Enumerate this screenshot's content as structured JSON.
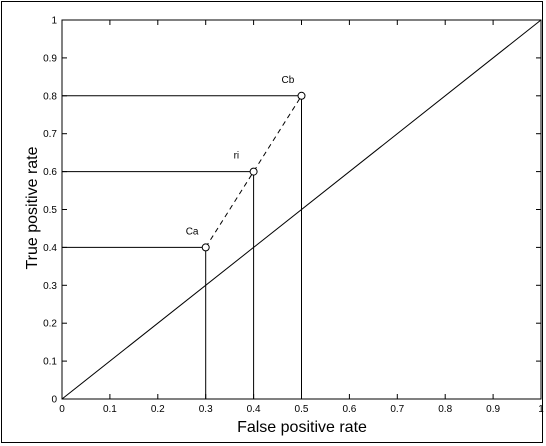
{
  "chart_data": {
    "type": "line",
    "xlabel": "False positive rate",
    "ylabel": "True positive rate",
    "xlim": [
      0,
      1
    ],
    "ylim": [
      0,
      1
    ],
    "xticks": [
      "0",
      "0.1",
      "0.2",
      "0.3",
      "0.4",
      "0.5",
      "0.6",
      "0.7",
      "0.8",
      "0.9",
      "1"
    ],
    "yticks": [
      "0",
      "0.1",
      "0.2",
      "0.3",
      "0.4",
      "0.5",
      "0.6",
      "0.7",
      "0.8",
      "0.9",
      "1"
    ],
    "grid": false,
    "diagonal": {
      "x": [
        0,
        1
      ],
      "y": [
        0,
        1
      ],
      "style": "solid"
    },
    "points": [
      {
        "label": "Ca",
        "x": 0.3,
        "y": 0.4
      },
      {
        "label": "ri",
        "x": 0.4,
        "y": 0.6
      },
      {
        "label": "Cb",
        "x": 0.5,
        "y": 0.8
      }
    ],
    "interpolation_line": {
      "x": [
        0.3,
        0.4,
        0.5
      ],
      "y": [
        0.4,
        0.6,
        0.8
      ],
      "style": "dashed"
    },
    "projection_lines": "each point connected to the y-axis horizontally and to the x-axis vertically"
  }
}
